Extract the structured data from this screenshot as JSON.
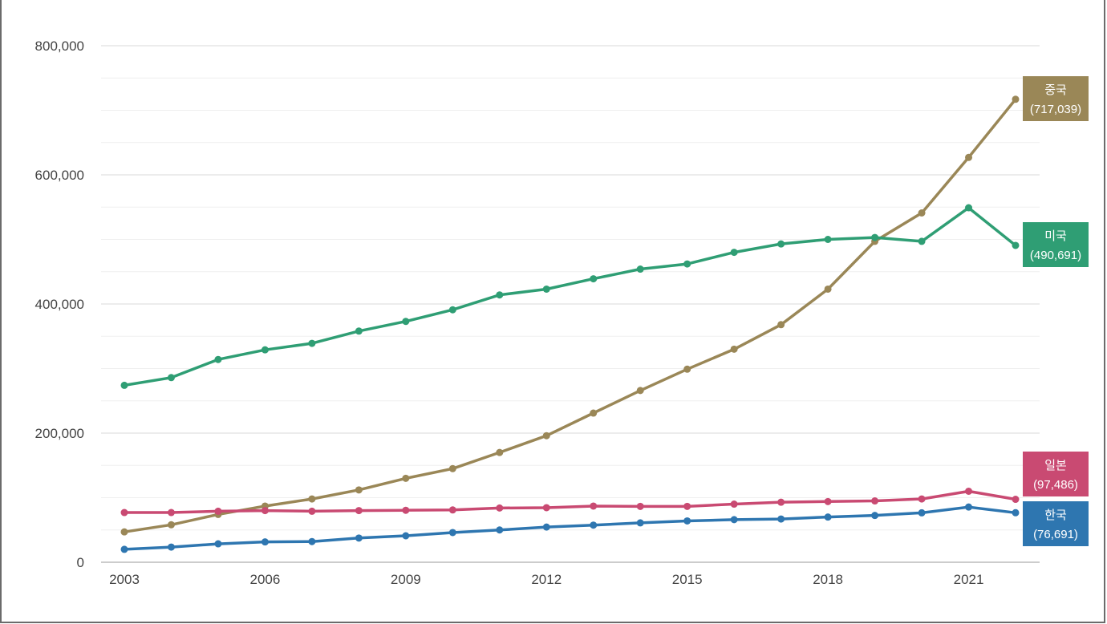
{
  "chart_data": {
    "type": "line",
    "title": "",
    "xlabel": "",
    "ylabel": "",
    "x": [
      2003,
      2004,
      2005,
      2006,
      2007,
      2008,
      2009,
      2010,
      2011,
      2012,
      2013,
      2014,
      2015,
      2016,
      2017,
      2018,
      2019,
      2020,
      2021,
      2022
    ],
    "ylim": [
      0,
      800000
    ],
    "xlim": [
      2003,
      2022
    ],
    "y_ticks": [
      0,
      200000,
      400000,
      600000,
      800000
    ],
    "y_tick_labels": [
      "0",
      "200,000",
      "400,000",
      "600,000",
      "800,000"
    ],
    "x_ticks": [
      2003,
      2006,
      2009,
      2012,
      2015,
      2018,
      2021
    ],
    "x_tick_labels": [
      "2003",
      "2006",
      "2009",
      "2012",
      "2015",
      "2018",
      "2021"
    ],
    "grid": true,
    "series": [
      {
        "name": "중국",
        "color": "#9a8757",
        "end_label": "(717,039)",
        "values": [
          47000,
          58000,
          74000,
          87000,
          98000,
          112000,
          130000,
          145000,
          170000,
          196000,
          231000,
          266000,
          299000,
          330000,
          368000,
          423000,
          497000,
          541000,
          627000,
          717039
        ]
      },
      {
        "name": "미국",
        "color": "#2f9e74",
        "end_label": "(490,691)",
        "values": [
          274000,
          286000,
          314000,
          329000,
          339000,
          358000,
          373000,
          391000,
          414000,
          423000,
          439000,
          454000,
          462000,
          480000,
          493000,
          500000,
          503000,
          497000,
          549000,
          490691
        ]
      },
      {
        "name": "일본",
        "color": "#c94a72",
        "end_label": "(97,486)",
        "values": [
          77000,
          77000,
          79000,
          80000,
          79000,
          80000,
          80500,
          81000,
          84000,
          84500,
          87000,
          86500,
          86500,
          90000,
          93000,
          94000,
          95000,
          98000,
          110000,
          97486
        ]
      },
      {
        "name": "한국",
        "color": "#2e76b0",
        "end_label": "(76,691)",
        "values": [
          20000,
          23500,
          28500,
          31500,
          32000,
          37500,
          41000,
          46000,
          50000,
          54500,
          57500,
          61000,
          64000,
          66000,
          67000,
          70000,
          72500,
          76500,
          85500,
          76691
        ]
      }
    ]
  }
}
